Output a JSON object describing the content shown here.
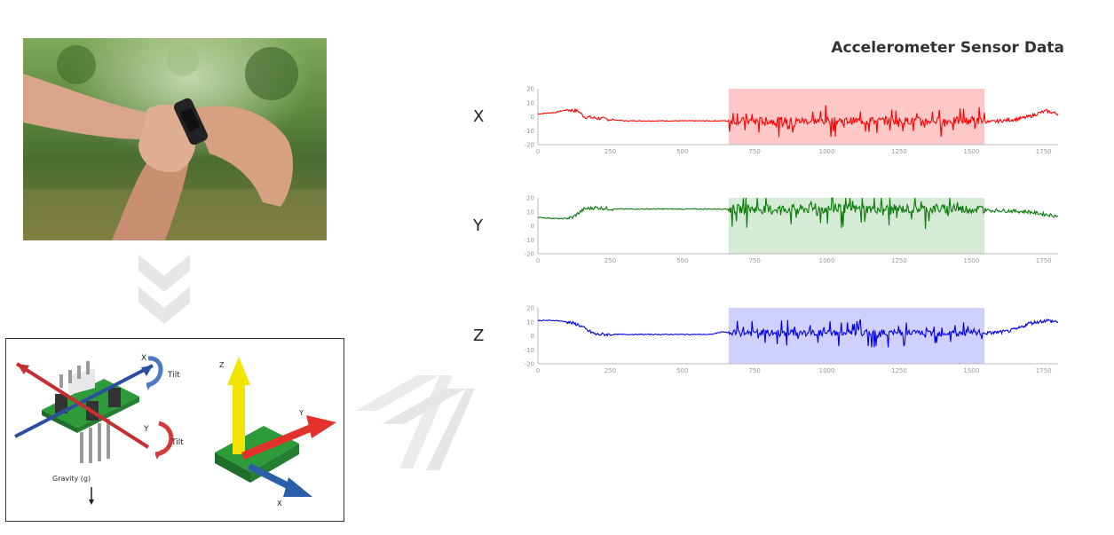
{
  "title": "Accelerometer Sensor Data",
  "photo": {
    "icon": "wrist-smartwatch-photo"
  },
  "diagram": {
    "tilt_x": "Tilt",
    "tilt_y": "Tilt",
    "axis_x": "X",
    "axis_y": "Y",
    "axis_z": "Z",
    "gravity": "Gravity (g)",
    "axis3d_z": "Z",
    "axis3d_y": "Y",
    "axis3d_x": "X"
  },
  "chart_data": [
    {
      "type": "line",
      "axis_name": "X",
      "color": "#ff0000",
      "highlight_color": "#ffc8c8",
      "highlight_range": [
        660,
        1545
      ],
      "xlim": [
        0,
        1800
      ],
      "ylim": [
        -20,
        20
      ],
      "xticks": [
        0,
        250,
        500,
        750,
        1000,
        1250,
        1500,
        1750
      ],
      "yticks": [
        20,
        10,
        0,
        -10,
        -20
      ],
      "series": [
        {
          "x": [
            0,
            60,
            100,
            140,
            160,
            200,
            250,
            300,
            350,
            400,
            500,
            600,
            650,
            660,
            1545,
            1560,
            1600,
            1650,
            1700,
            1740,
            1760,
            1800
          ],
          "values": [
            2,
            3,
            5,
            4,
            0,
            -1,
            -2,
            -3,
            -3,
            -3,
            -3,
            -3,
            -3,
            -3,
            -3,
            -4,
            -3,
            -2,
            0,
            3,
            4,
            2
          ]
        }
      ],
      "noise_amplitude": 9
    },
    {
      "type": "line",
      "axis_name": "Y",
      "color": "#0a7a0a",
      "highlight_color": "#d6ebd6",
      "highlight_range": [
        660,
        1545
      ],
      "xlim": [
        0,
        1800
      ],
      "ylim": [
        -20,
        20
      ],
      "xticks": [
        0,
        250,
        500,
        750,
        1000,
        1250,
        1500,
        1750
      ],
      "yticks": [
        20,
        10,
        0,
        -10,
        -20
      ],
      "series": [
        {
          "x": [
            0,
            80,
            120,
            140,
            160,
            200,
            260,
            300,
            400,
            500,
            600,
            650,
            660,
            1545,
            1560,
            1600,
            1700,
            1760,
            1800
          ],
          "values": [
            6,
            5,
            6,
            9,
            12,
            13,
            12,
            12,
            12,
            12,
            12,
            12,
            12,
            12,
            11,
            11,
            10,
            8,
            7
          ]
        }
      ],
      "noise_amplitude": 11
    },
    {
      "type": "line",
      "axis_name": "Z",
      "color": "#0000e6",
      "highlight_color": "#d0d0ff",
      "highlight_range": [
        660,
        1545
      ],
      "xlim": [
        0,
        1800
      ],
      "ylim": [
        -20,
        20
      ],
      "xticks": [
        0,
        250,
        500,
        750,
        1000,
        1250,
        1500,
        1750
      ],
      "yticks": [
        20,
        10,
        0,
        -10,
        -20
      ],
      "series": [
        {
          "x": [
            0,
            60,
            100,
            140,
            170,
            200,
            220,
            300,
            400,
            500,
            600,
            640,
            660,
            1545,
            1560,
            1620,
            1660,
            1700,
            1760,
            1800
          ],
          "values": [
            11,
            11,
            10,
            8,
            4,
            1,
            1,
            1,
            1,
            1,
            1,
            3,
            2,
            2,
            2,
            3,
            5,
            9,
            11,
            10
          ]
        }
      ],
      "noise_amplitude": 8
    }
  ]
}
